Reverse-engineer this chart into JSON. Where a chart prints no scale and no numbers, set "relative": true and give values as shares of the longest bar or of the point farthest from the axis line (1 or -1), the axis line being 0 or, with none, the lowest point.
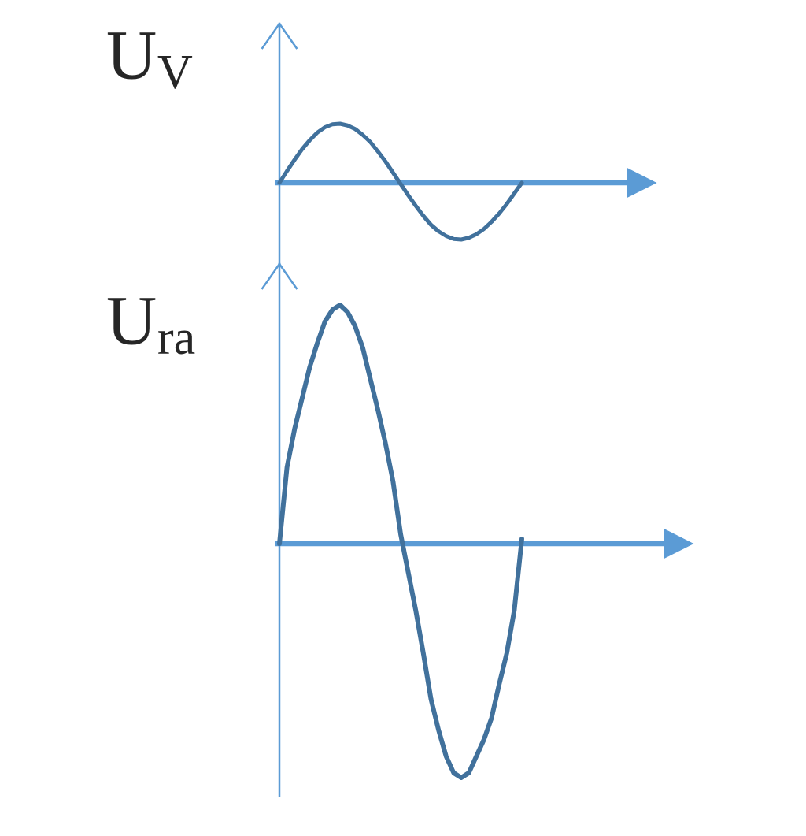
{
  "chart_data": [
    {
      "type": "line",
      "ylabel": "U$_{V}$",
      "relative": true,
      "categories": [
        null,
        null,
        null,
        null,
        null,
        null,
        null,
        null,
        null,
        null,
        null,
        null,
        null,
        null,
        null,
        null,
        null,
        null,
        null,
        null,
        null,
        null,
        null,
        null,
        null,
        null,
        null,
        null,
        null,
        null,
        null,
        null,
        null
      ],
      "series": [
        {
          "color": "#41719c",
          "values": [
            0,
            0.2,
            0.39,
            0.57,
            0.72,
            0.85,
            0.94,
            0.99,
            1.0,
            0.97,
            0.91,
            0.81,
            0.69,
            0.53,
            0.36,
            0.17,
            -0.02,
            -0.21,
            -0.39,
            -0.56,
            -0.71,
            -0.82,
            -0.9,
            -0.95,
            -0.96,
            -0.93,
            -0.87,
            -0.78,
            -0.66,
            -0.52,
            -0.36,
            -0.18,
            0
          ]
        }
      ],
      "ref_lines": [
        {
          "axis": "y",
          "value": 0,
          "color": "#5b9bd5"
        }
      ]
    },
    {
      "type": "line",
      "ylabel": "U$_{ra}$",
      "relative": true,
      "categories": [
        null,
        null,
        null,
        null,
        null,
        null,
        null,
        null,
        null,
        null,
        null,
        null,
        null,
        null,
        null,
        null,
        null,
        null,
        null,
        null,
        null,
        null,
        null,
        null,
        null,
        null,
        null,
        null,
        null,
        null,
        null,
        null,
        null
      ],
      "series": [
        {
          "color": "#41719c",
          "values": [
            0,
            0.32,
            0.48,
            0.61,
            0.74,
            0.84,
            0.93,
            0.98,
            1.0,
            0.97,
            0.91,
            0.82,
            0.69,
            0.56,
            0.42,
            0.26,
            0.04,
            -0.12,
            -0.28,
            -0.46,
            -0.65,
            -0.78,
            -0.89,
            -0.96,
            -0.98,
            -0.96,
            -0.89,
            -0.82,
            -0.73,
            -0.59,
            -0.46,
            -0.28,
            0.02
          ]
        }
      ],
      "ref_lines": [
        {
          "axis": "y",
          "value": 0,
          "color": "#5b9bd5"
        }
      ]
    }
  ]
}
